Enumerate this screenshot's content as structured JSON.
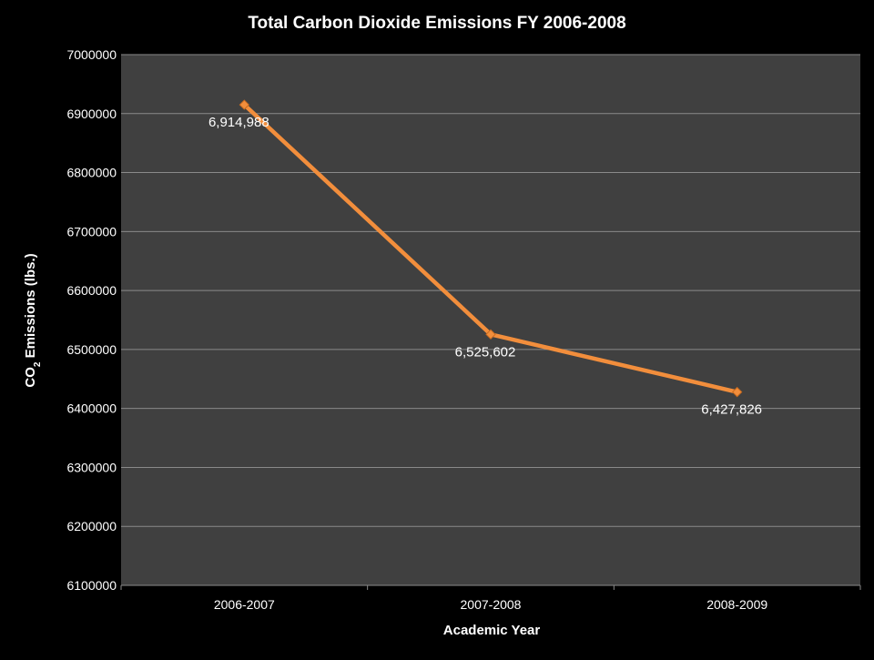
{
  "chart_data": {
    "type": "line",
    "title": "Total Carbon Dioxide Emissions FY 2006-2008",
    "xlabel": "Academic Year",
    "ylabel": {
      "prefix": "CO",
      "subscript": "2",
      "suffix": " Emissions (lbs.)"
    },
    "categories": [
      "2006-2007",
      "2007-2008",
      "2008-2009"
    ],
    "series": [
      {
        "values": [
          6914988,
          6525602,
          6427826
        ],
        "labels": [
          "6,914,988",
          "6,525,602",
          "6,427,826"
        ],
        "color": "#f28e3c",
        "marker": "diamond"
      }
    ],
    "ylim": [
      6100000,
      7000000
    ],
    "yticks": [
      "7000000",
      "6900000",
      "6800000",
      "6700000",
      "6600000",
      "6500000",
      "6400000",
      "6300000",
      "6200000",
      "6100000"
    ],
    "grid": true,
    "legend": "none",
    "colors": {
      "background": "#000000",
      "plot_area": "#404040",
      "gridline": "#8a8a8a",
      "text": "#ffffff"
    }
  }
}
